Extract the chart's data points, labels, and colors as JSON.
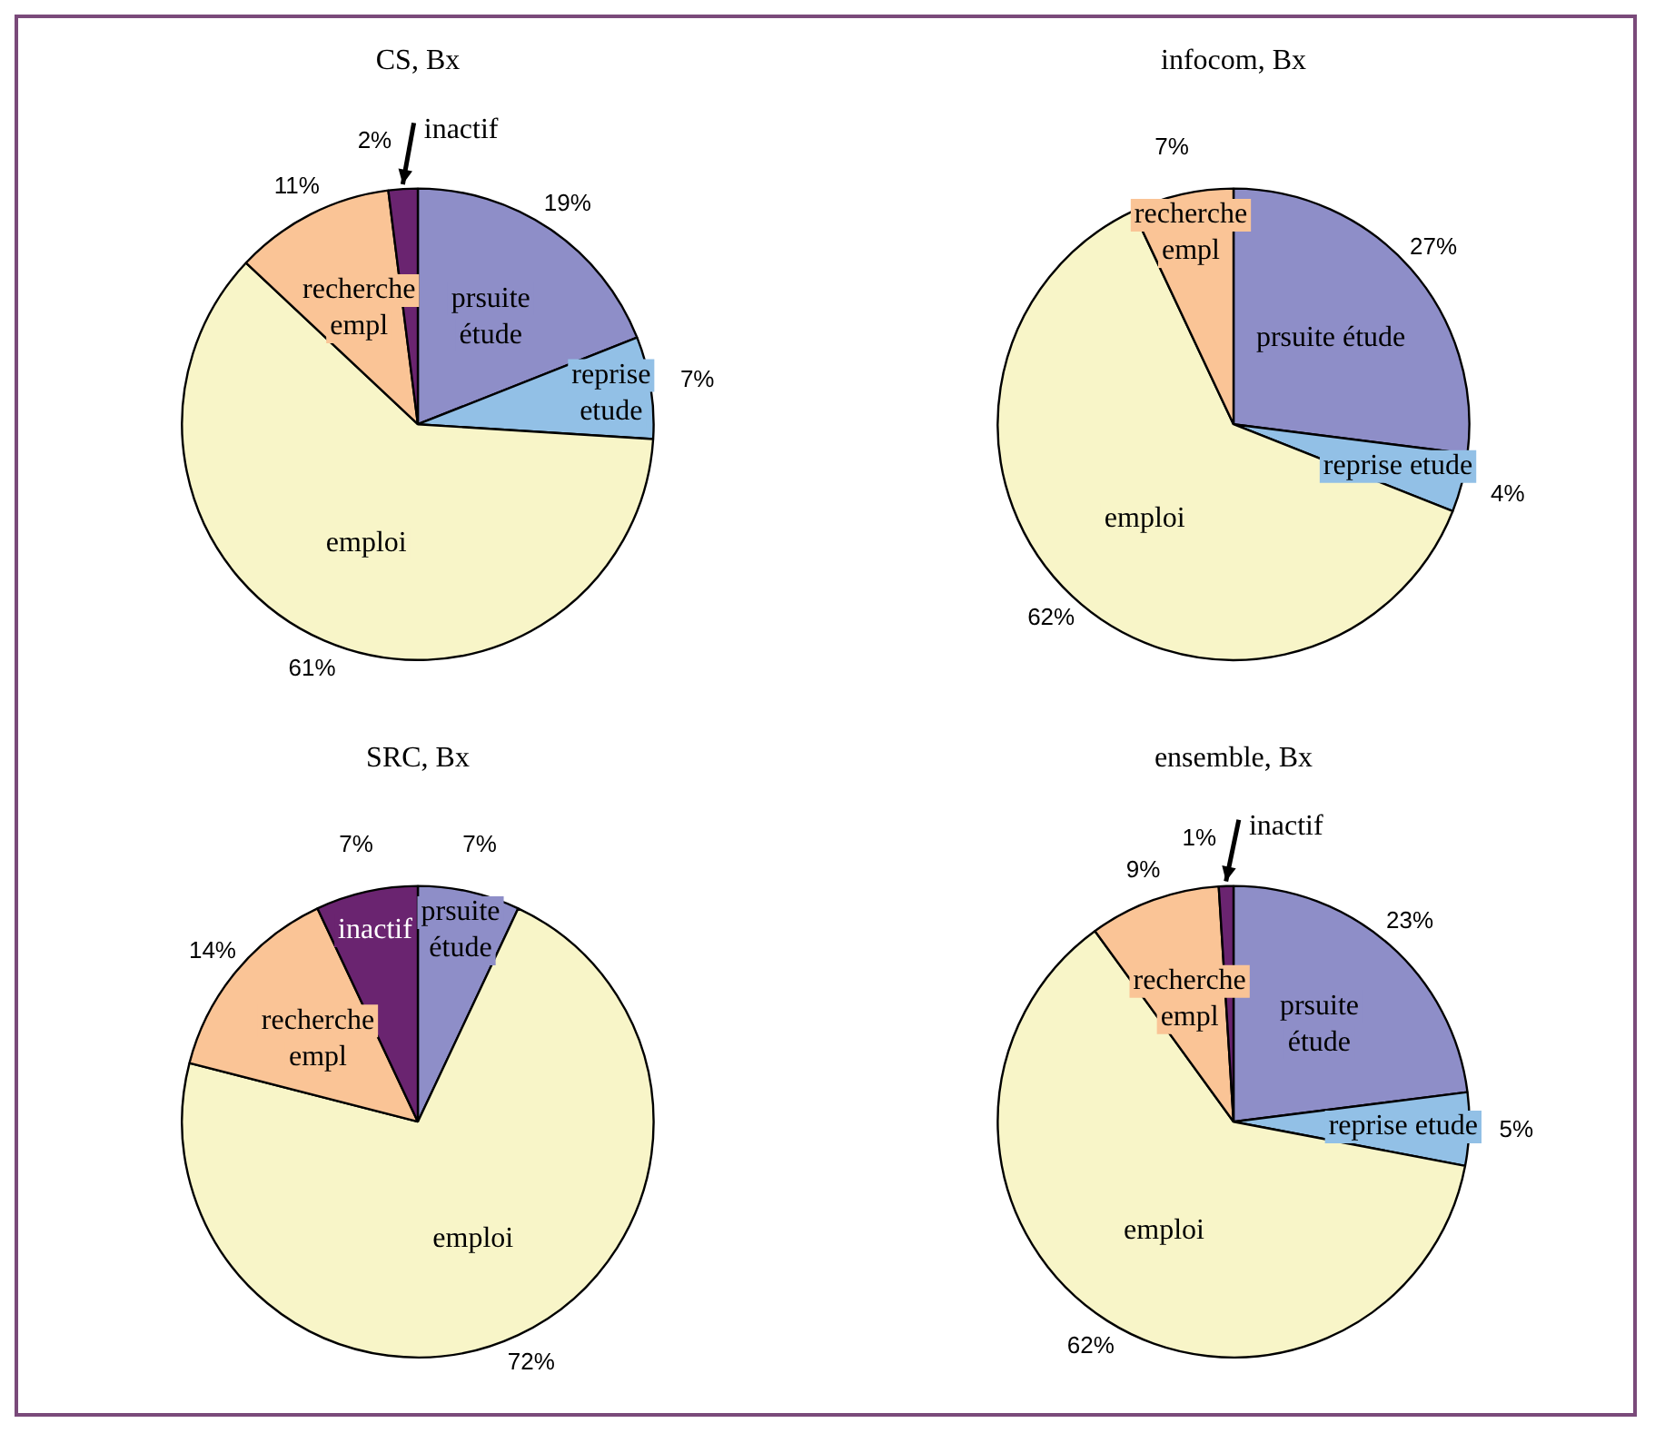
{
  "chart_data": [
    {
      "type": "pie",
      "title": "CS, Bx",
      "categories": [
        "prsuite étude",
        "reprise etude",
        "emploi",
        "recherche empl",
        "inactif"
      ],
      "values": [
        19,
        7,
        61,
        11,
        2
      ],
      "colors": [
        "#8e8ec8",
        "#92c0e6",
        "#f8f5c8",
        "#fac496",
        "#6a2470"
      ],
      "value_labels": [
        "19%",
        "7%",
        "61%",
        "11%",
        "2%"
      ]
    },
    {
      "type": "pie",
      "title": "infocom, Bx",
      "categories": [
        "prsuite étude",
        "reprise etude",
        "emploi",
        "recherche empl"
      ],
      "values": [
        27,
        4,
        62,
        7
      ],
      "colors": [
        "#8e8ec8",
        "#92c0e6",
        "#f8f5c8",
        "#fac496"
      ],
      "value_labels": [
        "27%",
        "4%",
        "62%",
        "7%"
      ]
    },
    {
      "type": "pie",
      "title": "SRC, Bx",
      "categories": [
        "prsuite étude",
        "emploi",
        "recherche empl",
        "inactif"
      ],
      "values": [
        7,
        72,
        14,
        7
      ],
      "colors": [
        "#8e8ec8",
        "#f8f5c8",
        "#fac496",
        "#6a2470"
      ],
      "value_labels": [
        "7%",
        "72%",
        "14%",
        "7%"
      ]
    },
    {
      "type": "pie",
      "title": "ensemble, Bx",
      "categories": [
        "prsuite étude",
        "reprise etude",
        "emploi",
        "recherche empl",
        "inactif"
      ],
      "values": [
        23,
        5,
        62,
        9,
        1
      ],
      "colors": [
        "#8e8ec8",
        "#92c0e6",
        "#f8f5c8",
        "#fac496",
        "#6a2470"
      ],
      "value_labels": [
        "23%",
        "5%",
        "62%",
        "9%",
        "1%"
      ]
    }
  ]
}
